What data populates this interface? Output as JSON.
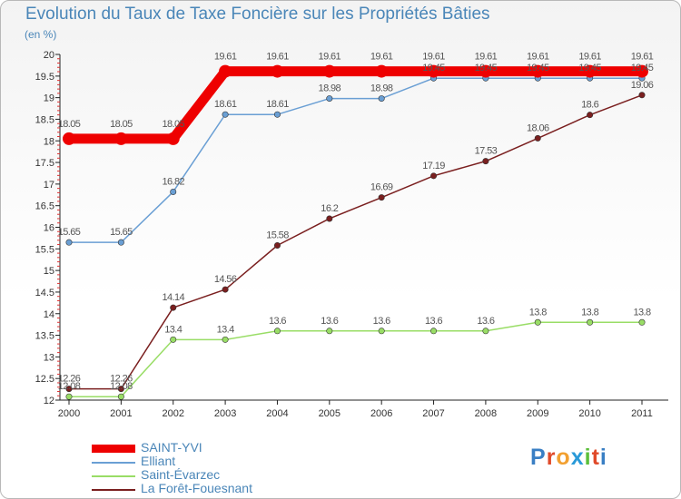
{
  "title": "Evolution du Taux de Taxe Foncière sur les Propriétés Bâties",
  "unit": "(en %)",
  "logo": {
    "text": "Proxiti",
    "letter_colors": [
      "#3a7fc4",
      "#e04a2a",
      "#f2a030",
      "#2a9ad8",
      "#5bbf3a",
      "#e04a2a",
      "#3a7fc4"
    ]
  },
  "chart_data": {
    "type": "line",
    "title": "Evolution du Taux de Taxe Foncière sur les Propriétés Bâties",
    "ylabel": "(en %)",
    "xlabel": "",
    "x": [
      2000,
      2001,
      2002,
      2003,
      2004,
      2005,
      2006,
      2007,
      2008,
      2009,
      2010,
      2011
    ],
    "ylim": [
      12,
      20
    ],
    "yticks": [
      "12",
      "12.5",
      "13",
      "13.5",
      "14",
      "14.5",
      "15",
      "15.5",
      "16",
      "16.5",
      "17",
      "17.5",
      "18",
      "18.5",
      "19",
      "19.5",
      "20"
    ],
    "grid": false,
    "legend": "bottom-left",
    "series": [
      {
        "name": "SAINT-YVI",
        "color": "#ee0000",
        "values": [
          18.05,
          18.05,
          18.05,
          19.61,
          19.61,
          19.61,
          19.61,
          19.61,
          19.61,
          19.61,
          19.61,
          19.61
        ],
        "labels": [
          "18.05",
          "18.05",
          "18.05",
          "19.61",
          "19.61",
          "19.61",
          "19.61",
          "19.61",
          "19.61",
          "19.61",
          "19.61",
          "19.61"
        ]
      },
      {
        "name": "Elliant",
        "color": "#6a9fd4",
        "values": [
          15.65,
          15.65,
          16.82,
          18.61,
          18.61,
          18.98,
          18.98,
          19.45,
          19.45,
          19.45,
          19.45,
          19.45
        ],
        "labels": [
          "15.65",
          "15.65",
          "16.82",
          "18.61",
          "18.61",
          "18.98",
          "18.98",
          "19.45",
          "19.45",
          "19.45",
          "19.45",
          "19.45"
        ]
      },
      {
        "name": "Saint-Évarzec",
        "color": "#99dd66",
        "values": [
          12.08,
          12.08,
          13.4,
          13.4,
          13.6,
          13.6,
          13.6,
          13.6,
          13.6,
          13.8,
          13.8,
          13.8
        ],
        "labels": [
          "12.08",
          "12.08",
          "13.4",
          "13.4",
          "13.6",
          "13.6",
          "13.6",
          "13.6",
          "13.6",
          "13.8",
          "13.8",
          "13.8"
        ]
      },
      {
        "name": "La Forêt-Fouesnant",
        "color": "#7a1f1f",
        "values": [
          12.26,
          12.26,
          14.14,
          14.56,
          15.58,
          16.2,
          16.69,
          17.19,
          17.53,
          18.06,
          18.6,
          19.06
        ],
        "labels": [
          "12.26",
          "12.26",
          "14.14",
          "14.56",
          "15.58",
          "16.2",
          "16.69",
          "17.19",
          "17.53",
          "18.06",
          "18.6",
          "19.06"
        ]
      }
    ]
  }
}
